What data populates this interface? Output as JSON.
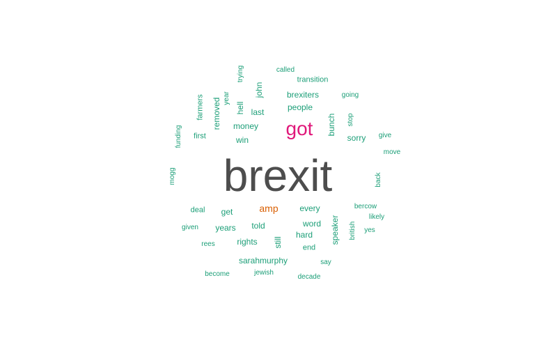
{
  "colors": {
    "dominant": "#4d4d4d",
    "secondary": "#e0187a",
    "tertiary": "#d95f02",
    "common": "#1b9e77"
  },
  "words": [
    {
      "text": "brexit",
      "tier": "dominant"
    },
    {
      "text": "got",
      "tier": "secondary"
    },
    {
      "text": "amp",
      "tier": "tertiary"
    },
    {
      "text": "called",
      "tier": "common"
    },
    {
      "text": "trying",
      "tier": "common"
    },
    {
      "text": "transition",
      "tier": "common"
    },
    {
      "text": "year",
      "tier": "common"
    },
    {
      "text": "john",
      "tier": "common"
    },
    {
      "text": "brexiters",
      "tier": "common"
    },
    {
      "text": "going",
      "tier": "common"
    },
    {
      "text": "farmers",
      "tier": "common"
    },
    {
      "text": "removed",
      "tier": "common"
    },
    {
      "text": "hell",
      "tier": "common"
    },
    {
      "text": "last",
      "tier": "common"
    },
    {
      "text": "people",
      "tier": "common"
    },
    {
      "text": "bunch",
      "tier": "common"
    },
    {
      "text": "stop",
      "tier": "common"
    },
    {
      "text": "funding",
      "tier": "common"
    },
    {
      "text": "first",
      "tier": "common"
    },
    {
      "text": "money",
      "tier": "common"
    },
    {
      "text": "win",
      "tier": "common"
    },
    {
      "text": "sorry",
      "tier": "common"
    },
    {
      "text": "give",
      "tier": "common"
    },
    {
      "text": "move",
      "tier": "common"
    },
    {
      "text": "mogg",
      "tier": "common"
    },
    {
      "text": "back",
      "tier": "common"
    },
    {
      "text": "deal",
      "tier": "common"
    },
    {
      "text": "get",
      "tier": "common"
    },
    {
      "text": "every",
      "tier": "common"
    },
    {
      "text": "bercow",
      "tier": "common"
    },
    {
      "text": "likely",
      "tier": "common"
    },
    {
      "text": "given",
      "tier": "common"
    },
    {
      "text": "years",
      "tier": "common"
    },
    {
      "text": "told",
      "tier": "common"
    },
    {
      "text": "word",
      "tier": "common"
    },
    {
      "text": "speaker",
      "tier": "common"
    },
    {
      "text": "british",
      "tier": "common"
    },
    {
      "text": "yes",
      "tier": "common"
    },
    {
      "text": "hard",
      "tier": "common"
    },
    {
      "text": "rees",
      "tier": "common"
    },
    {
      "text": "rights",
      "tier": "common"
    },
    {
      "text": "still",
      "tier": "common"
    },
    {
      "text": "end",
      "tier": "common"
    },
    {
      "text": "sarahmurphy",
      "tier": "common"
    },
    {
      "text": "say",
      "tier": "common"
    },
    {
      "text": "become",
      "tier": "common"
    },
    {
      "text": "jewish",
      "tier": "common"
    },
    {
      "text": "decade",
      "tier": "common"
    }
  ]
}
